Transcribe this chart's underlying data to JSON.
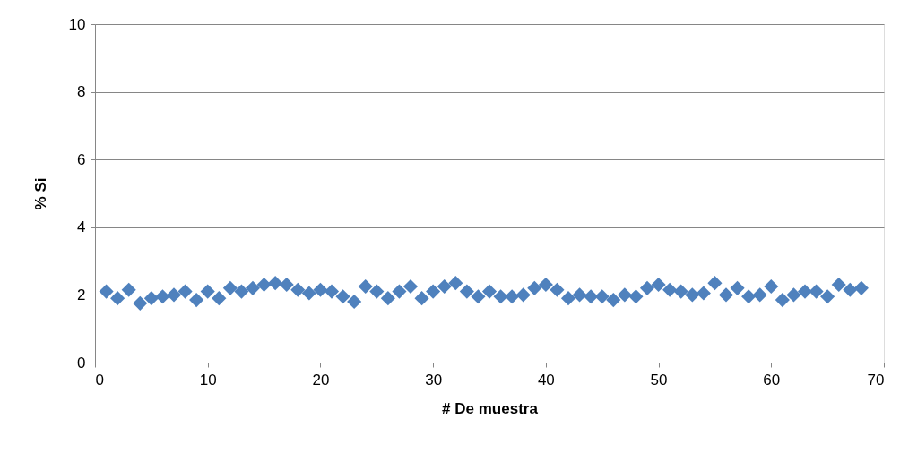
{
  "chart_data": {
    "type": "scatter",
    "xlabel": "# De muestra",
    "ylabel": "% Si",
    "x": [
      1,
      2,
      3,
      4,
      5,
      6,
      7,
      8,
      9,
      10,
      11,
      12,
      13,
      14,
      15,
      16,
      17,
      18,
      19,
      20,
      21,
      22,
      23,
      24,
      25,
      26,
      27,
      28,
      29,
      30,
      31,
      32,
      33,
      34,
      35,
      36,
      37,
      38,
      39,
      40,
      41,
      42,
      43,
      44,
      45,
      46,
      47,
      48,
      49,
      50,
      51,
      52,
      53,
      54,
      55,
      56,
      57,
      58,
      59,
      60,
      61,
      62,
      63,
      64,
      65,
      66,
      67,
      68
    ],
    "series": [
      {
        "color": "#4f81bd",
        "values": [
          2.1,
          1.9,
          2.15,
          1.75,
          1.9,
          1.95,
          2.0,
          2.1,
          1.85,
          2.1,
          1.9,
          2.2,
          2.1,
          2.2,
          2.3,
          2.35,
          2.3,
          2.15,
          2.05,
          2.15,
          2.1,
          1.95,
          1.8,
          2.25,
          2.1,
          1.9,
          2.1,
          2.25,
          1.9,
          2.1,
          2.25,
          2.35,
          2.1,
          1.95,
          2.1,
          1.95,
          1.95,
          2.0,
          2.2,
          2.3,
          2.15,
          1.9,
          2.0,
          1.95,
          1.95,
          1.85,
          2.0,
          1.95,
          2.2,
          2.3,
          2.15,
          2.1,
          2.0,
          2.05,
          2.35,
          2.0,
          2.2,
          1.95,
          2.0,
          2.25,
          1.85,
          2.0,
          2.1,
          2.1,
          1.95,
          2.3,
          2.15,
          2.2
        ]
      }
    ],
    "xlim": [
      0,
      70
    ],
    "xticks": [
      0,
      10,
      20,
      30,
      40,
      50,
      60,
      70
    ],
    "ylim": [
      0,
      10
    ],
    "yticks": [
      0,
      2,
      4,
      6,
      8,
      10
    ],
    "grid": "y",
    "marker": "diamond"
  }
}
